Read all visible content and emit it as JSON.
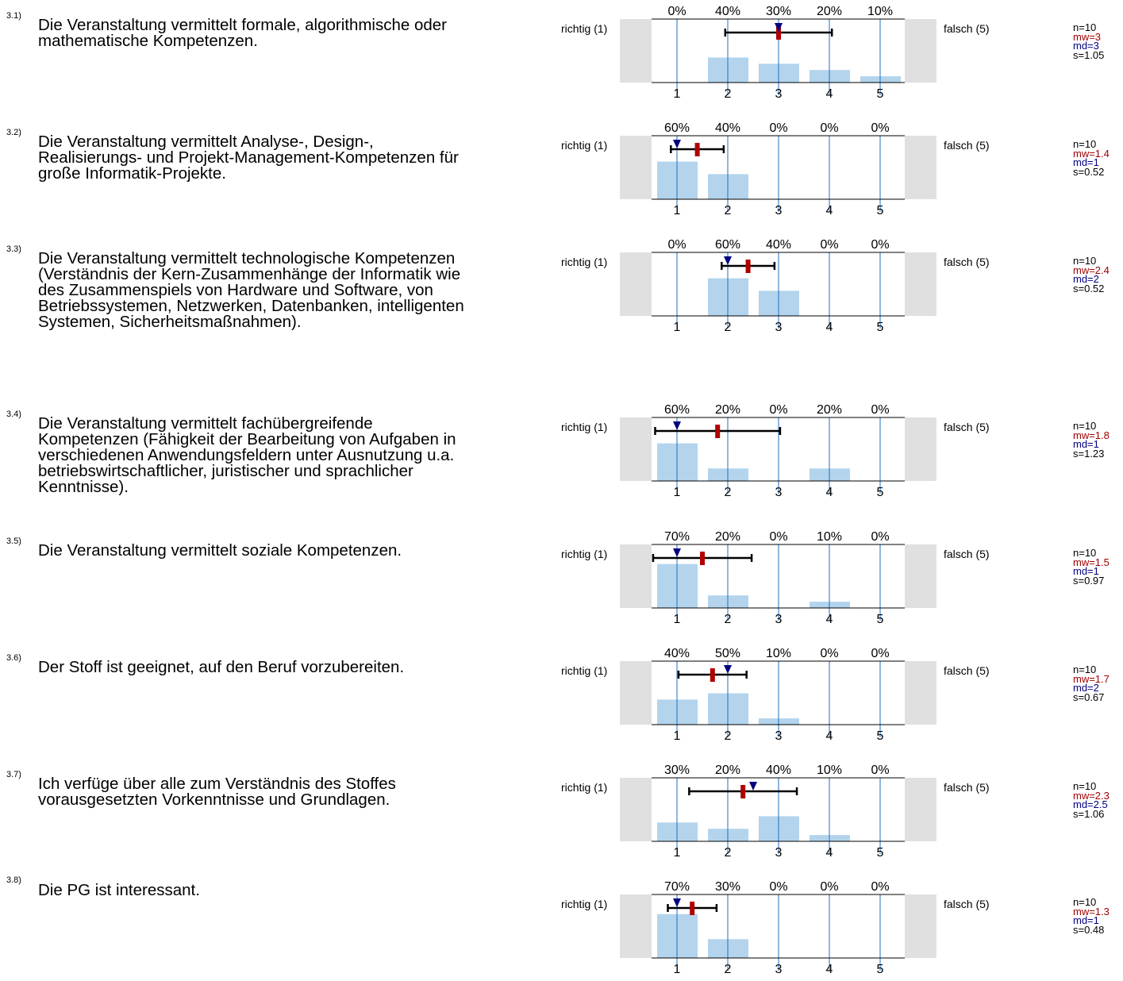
{
  "labels": {
    "left": "richtig (1)",
    "right": "falsch (5)"
  },
  "colors": {
    "bar": "#b3d4ec",
    "grid": "#1f6fbf",
    "side": "#e0e0e0",
    "mean": "#b00000",
    "median": "#000080"
  },
  "questions": [
    {
      "num": "3.1)",
      "text": "Die Veranstaltung vermittelt formale, algorithmische oder mathematische Kompetenzen.",
      "n": "n=10",
      "mw": "mw=3",
      "md": "md=3",
      "s": "s=1.05"
    },
    {
      "num": "3.2)",
      "text": "Die Veranstaltung vermittelt Analyse-, Design-, Realisierungs- und Projekt-Management-Kompetenzen für große Informatik-Projekte.",
      "n": "n=10",
      "mw": "mw=1.4",
      "md": "md=1",
      "s": "s=0.52"
    },
    {
      "num": "3.3)",
      "text": "Die Veranstaltung vermittelt technologische Kompetenzen (Verständnis der Kern-Zusammenhänge der Informatik wie des Zusammenspiels von Hardware und Software, von Betriebssystemen, Netzwerken, Datenbanken, intelligenten Systemen, Sicherheitsmaßnahmen).",
      "n": "n=10",
      "mw": "mw=2.4",
      "md": "md=2",
      "s": "s=0.52"
    },
    {
      "num": "3.4)",
      "text": "Die Veranstaltung vermittelt fachübergreifende Kompetenzen (Fähigkeit der Bearbeitung von Aufgaben in verschiedenen Anwendungsfeldern unter Ausnutzung u.a. betriebswirtschaftlicher, juristischer und sprachlicher Kenntnisse).",
      "n": "n=10",
      "mw": "mw=1.8",
      "md": "md=1",
      "s": "s=1.23"
    },
    {
      "num": "3.5)",
      "text": "Die Veranstaltung vermittelt soziale Kompetenzen.",
      "n": "n=10",
      "mw": "mw=1.5",
      "md": "md=1",
      "s": "s=0.97"
    },
    {
      "num": "3.6)",
      "text": "Der Stoff ist geeignet, auf den Beruf vorzubereiten.",
      "n": "n=10",
      "mw": "mw=1.7",
      "md": "md=2",
      "s": "s=0.67"
    },
    {
      "num": "3.7)",
      "text": "Ich verfüge über alle zum Verständnis des Stoffes vorausgesetzten Vorkenntnisse und Grundlagen.",
      "n": "n=10",
      "mw": "mw=2.3",
      "md": "md=2.5",
      "s": "s=1.06"
    },
    {
      "num": "3.8)",
      "text": "Die PG ist interessant.",
      "n": "n=10",
      "mw": "mw=1.3",
      "md": "md=1",
      "s": "s=0.48"
    }
  ],
  "chart_data": [
    {
      "type": "bar",
      "categories": [
        "1",
        "2",
        "3",
        "4",
        "5"
      ],
      "pct_labels": [
        "0%",
        "40%",
        "30%",
        "20%",
        "10%"
      ],
      "values": [
        0,
        40,
        30,
        20,
        10
      ],
      "mean": 3,
      "median": 3,
      "sd": 1.05,
      "ylim": [
        0,
        100
      ]
    },
    {
      "type": "bar",
      "categories": [
        "1",
        "2",
        "3",
        "4",
        "5"
      ],
      "pct_labels": [
        "60%",
        "40%",
        "0%",
        "0%",
        "0%"
      ],
      "values": [
        60,
        40,
        0,
        0,
        0
      ],
      "mean": 1.4,
      "median": 1,
      "sd": 0.52,
      "ylim": [
        0,
        100
      ]
    },
    {
      "type": "bar",
      "categories": [
        "1",
        "2",
        "3",
        "4",
        "5"
      ],
      "pct_labels": [
        "0%",
        "60%",
        "40%",
        "0%",
        "0%"
      ],
      "values": [
        0,
        60,
        40,
        0,
        0
      ],
      "mean": 2.4,
      "median": 2,
      "sd": 0.52,
      "ylim": [
        0,
        100
      ]
    },
    {
      "type": "bar",
      "categories": [
        "1",
        "2",
        "3",
        "4",
        "5"
      ],
      "pct_labels": [
        "60%",
        "20%",
        "0%",
        "20%",
        "0%"
      ],
      "values": [
        60,
        20,
        0,
        20,
        0
      ],
      "mean": 1.8,
      "median": 1,
      "sd": 1.23,
      "ylim": [
        0,
        100
      ]
    },
    {
      "type": "bar",
      "categories": [
        "1",
        "2",
        "3",
        "4",
        "5"
      ],
      "pct_labels": [
        "70%",
        "20%",
        "0%",
        "10%",
        "0%"
      ],
      "values": [
        70,
        20,
        0,
        10,
        0
      ],
      "mean": 1.5,
      "median": 1,
      "sd": 0.97,
      "ylim": [
        0,
        100
      ]
    },
    {
      "type": "bar",
      "categories": [
        "1",
        "2",
        "3",
        "4",
        "5"
      ],
      "pct_labels": [
        "40%",
        "50%",
        "10%",
        "0%",
        "0%"
      ],
      "values": [
        40,
        50,
        10,
        0,
        0
      ],
      "mean": 1.7,
      "median": 2,
      "sd": 0.67,
      "ylim": [
        0,
        100
      ]
    },
    {
      "type": "bar",
      "categories": [
        "1",
        "2",
        "3",
        "4",
        "5"
      ],
      "pct_labels": [
        "30%",
        "20%",
        "40%",
        "10%",
        "0%"
      ],
      "values": [
        30,
        20,
        40,
        10,
        0
      ],
      "mean": 2.3,
      "median": 2.5,
      "sd": 1.06,
      "ylim": [
        0,
        100
      ]
    },
    {
      "type": "bar",
      "categories": [
        "1",
        "2",
        "3",
        "4",
        "5"
      ],
      "pct_labels": [
        "70%",
        "30%",
        "0%",
        "0%",
        "0%"
      ],
      "values": [
        70,
        30,
        0,
        0,
        0
      ],
      "mean": 1.3,
      "median": 1,
      "sd": 0.48,
      "ylim": [
        0,
        100
      ]
    }
  ]
}
